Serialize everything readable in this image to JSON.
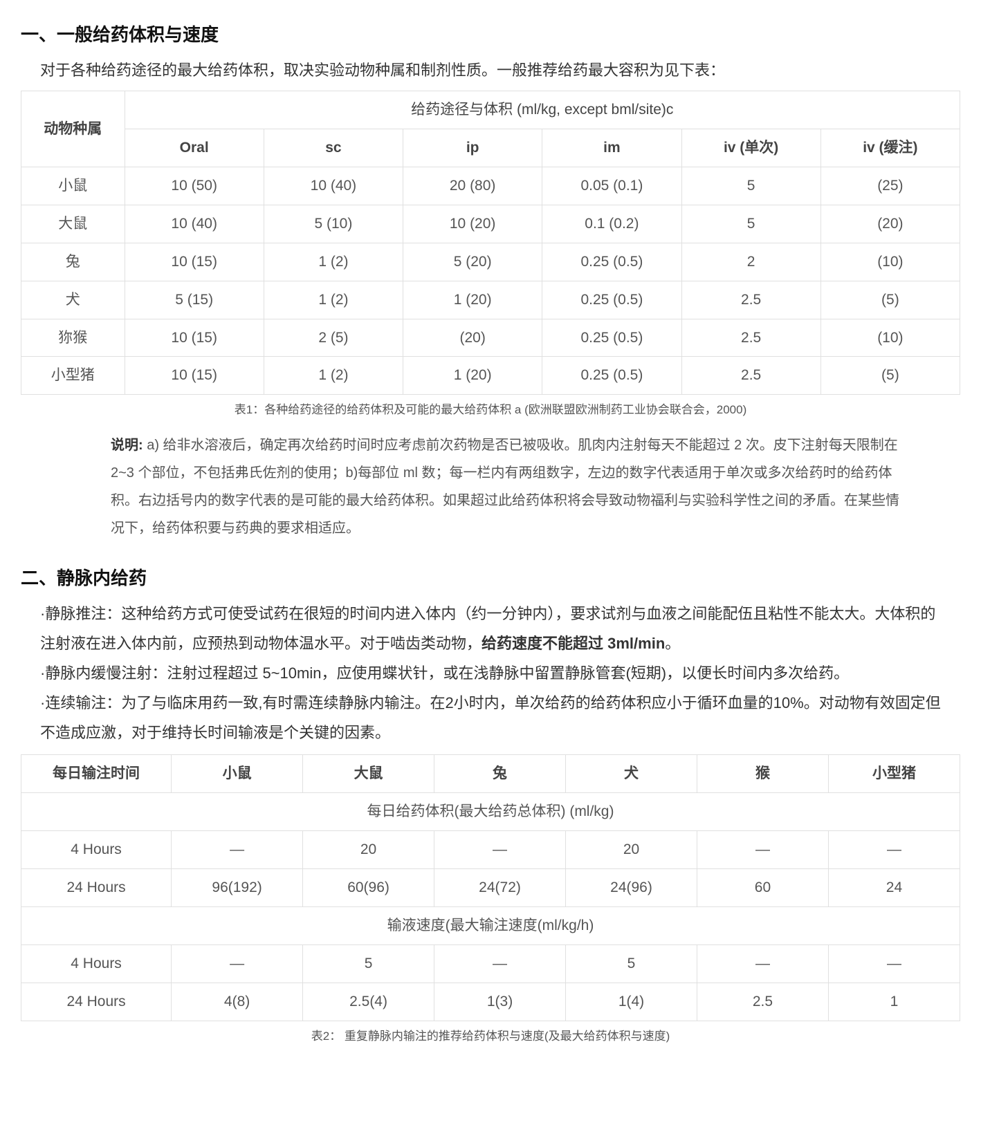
{
  "section1": {
    "heading": "一、一般给药体积与速度",
    "intro": "对于各种给药途径的最大给药体积，取决实验动物种属和制剂性质。一般推荐给药最大容积为见下表：",
    "table": {
      "row_header_label": "动物种属",
      "group_header": "给药途径与体积 (ml/kg, except bml/site)c",
      "columns": [
        "Oral",
        "sc",
        "ip",
        "im",
        "iv (单次)",
        "iv (缓注)"
      ],
      "rows": [
        {
          "species": "小鼠",
          "cells": [
            "10 (50)",
            "10 (40)",
            "20 (80)",
            "0.05 (0.1)",
            "5",
            "(25)"
          ]
        },
        {
          "species": "大鼠",
          "cells": [
            "10 (40)",
            "5 (10)",
            "10 (20)",
            "0.1 (0.2)",
            "5",
            "(20)"
          ]
        },
        {
          "species": "兔",
          "cells": [
            "10 (15)",
            "1 (2)",
            "5 (20)",
            "0.25 (0.5)",
            "2",
            "(10)"
          ]
        },
        {
          "species": "犬",
          "cells": [
            "5 (15)",
            "1 (2)",
            "1 (20)",
            "0.25 (0.5)",
            "2.5",
            "(5)"
          ]
        },
        {
          "species": "狝猴",
          "cells": [
            "10 (15)",
            "2 (5)",
            "(20)",
            "0.25 (0.5)",
            "2.5",
            "(10)"
          ]
        },
        {
          "species": "小型猪",
          "cells": [
            "10 (15)",
            "1 (2)",
            "1 (20)",
            "0.25 (0.5)",
            "2.5",
            "(5)"
          ]
        }
      ],
      "caption": "表1：各种给药途径的给药体积及可能的最大给药体积 a (欧洲联盟欧洲制药工业协会联合会，2000)"
    },
    "explanation_label": "说明: ",
    "explanation_body": "a) 给非水溶液后，确定再次给药时间时应考虑前次药物是否已被吸收。肌肉内注射每天不能超过 2 次。皮下注射每天限制在 2~3 个部位，不包括弗氏佐剂的使用；b)每部位 ml 数；每一栏内有两组数字，左边的数字代表适用于单次或多次给药时的给药体积。右边括号内的数字代表的是可能的最大给药体积。如果超过此给药体积将会导致动物福利与实验科学性之间的矛盾。在某些情况下，给药体积要与药典的要求相适应。"
  },
  "section2": {
    "heading": "二、静脉内给药",
    "p1_prefix": "·静脉推注：这种给药方式可使受试药在很短的时间内进入体内（约一分钟内），要求试剂与血液之间能配伍且粘性不能太大。大体积的注射液在进入体内前，应预热到动物体温水平。对于啮齿类动物，",
    "p1_bold": "给药速度不能超过 3ml/min",
    "p1_suffix": "。",
    "p2": "·静脉内缓慢注射：注射过程超过 5~10min，应使用蝶状针，或在浅静脉中留置静脉管套(短期)，以便长时间内多次给药。",
    "p3": "·连续输注：为了与临床用药一致,有时需连续静脉内输注。在2小时内，单次给药的给药体积应小于循环血量的10%。对动物有效固定但不造成应激，对于维持长时间输液是个关键的因素。",
    "table": {
      "columns": [
        "每日输注时间",
        "小鼠",
        "大鼠",
        "兔",
        "犬",
        "猴",
        "小型猪"
      ],
      "subhead_vol": "每日给药体积(最大给药总体积) (ml/kg)",
      "vol_rows": [
        {
          "label": "4 Hours",
          "cells": [
            "—",
            "20",
            "—",
            "20",
            "—",
            "—"
          ]
        },
        {
          "label": "24 Hours",
          "cells": [
            "96(192)",
            "60(96)",
            "24(72)",
            "24(96)",
            "60",
            "24"
          ]
        }
      ],
      "subhead_rate": "输液速度(最大输注速度(ml/kg/h)",
      "rate_rows": [
        {
          "label": "4 Hours",
          "cells": [
            "—",
            "5",
            "—",
            "5",
            "—",
            "—"
          ]
        },
        {
          "label": "24 Hours",
          "cells": [
            "4(8)",
            "2.5(4)",
            "1(3)",
            "1(4)",
            "2.5",
            "1"
          ]
        }
      ],
      "caption": "表2： 重复静脉内输注的推荐给药体积与速度(及最大给药体积与速度)"
    }
  },
  "colors": {
    "text_primary": "#333333",
    "text_secondary": "#555555",
    "heading": "#111111",
    "border": "#e0e0e0",
    "background": "#ffffff"
  }
}
